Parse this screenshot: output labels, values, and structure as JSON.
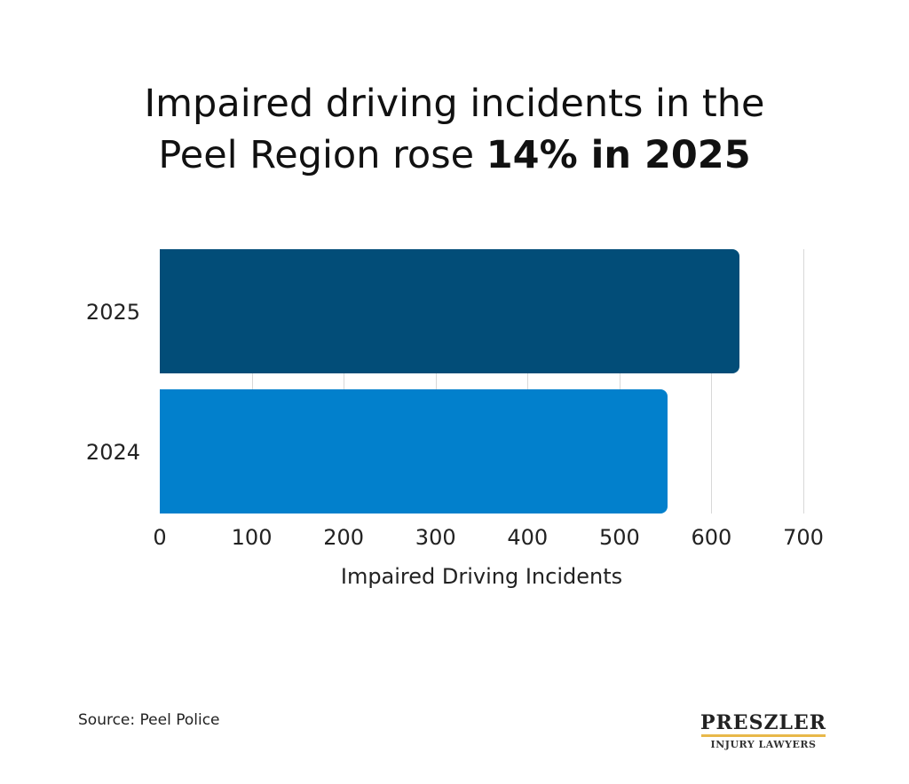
{
  "title": {
    "line1": "Impaired driving incidents in the",
    "line2_prefix": "Peel Region rose ",
    "line2_bold": "14% in 2025"
  },
  "source": "Source: Peel Police",
  "logo": {
    "name": "PRESZLER",
    "subtitle": "INJURY LAWYERS",
    "accent_color": "#e8b84a"
  },
  "colors": {
    "bar_2025": "#024d78",
    "bar_2024": "#0280cc",
    "grid": "#d8d8d8"
  },
  "chart_data": {
    "type": "bar",
    "orientation": "horizontal",
    "title": "Impaired driving incidents in the Peel Region rose 14% in 2025",
    "categories": [
      "2025",
      "2024"
    ],
    "values": [
      630,
      552
    ],
    "xlabel": "Impaired Driving Incidents",
    "ylabel": "",
    "xlim": [
      0,
      700
    ],
    "xticks": [
      "0",
      "100",
      "200",
      "300",
      "400",
      "500",
      "600",
      "700"
    ],
    "grid": true,
    "legend": null
  }
}
